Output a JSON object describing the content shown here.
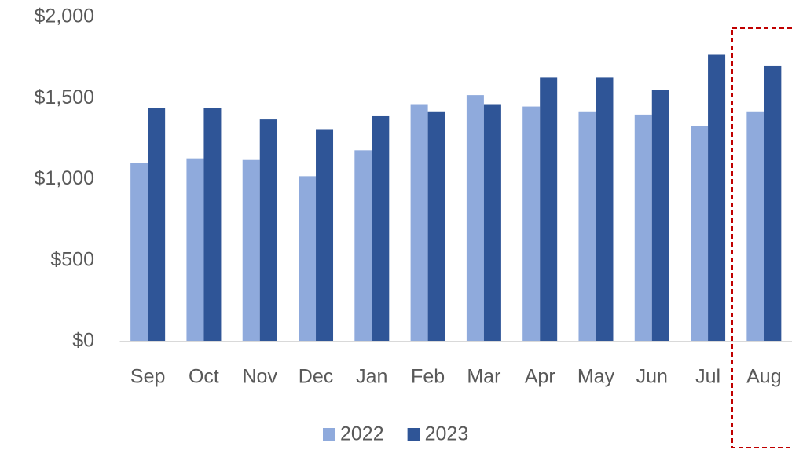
{
  "chart_data": {
    "type": "bar",
    "categories": [
      "Sep",
      "Oct",
      "Nov",
      "Dec",
      "Jan",
      "Feb",
      "Mar",
      "Apr",
      "May",
      "Jun",
      "Jul",
      "Aug"
    ],
    "series": [
      {
        "name": "2022",
        "color": "#8faadc",
        "values": [
          1100,
          1130,
          1120,
          1020,
          1180,
          1460,
          1520,
          1450,
          1420,
          1400,
          1330,
          1420
        ]
      },
      {
        "name": "2023",
        "color": "#2f5597",
        "values": [
          1440,
          1440,
          1370,
          1310,
          1390,
          1420,
          1460,
          1630,
          1630,
          1550,
          1770,
          1700
        ]
      }
    ],
    "ylim": [
      0,
      2000
    ],
    "yticks": [
      {
        "value": 0,
        "label": "$0"
      },
      {
        "value": 500,
        "label": "$500"
      },
      {
        "value": 1000,
        "label": "$1,000"
      },
      {
        "value": 1500,
        "label": "$1,500"
      },
      {
        "value": 2000,
        "label": "$2,000"
      }
    ],
    "grid": false,
    "legend": "bottom"
  }
}
